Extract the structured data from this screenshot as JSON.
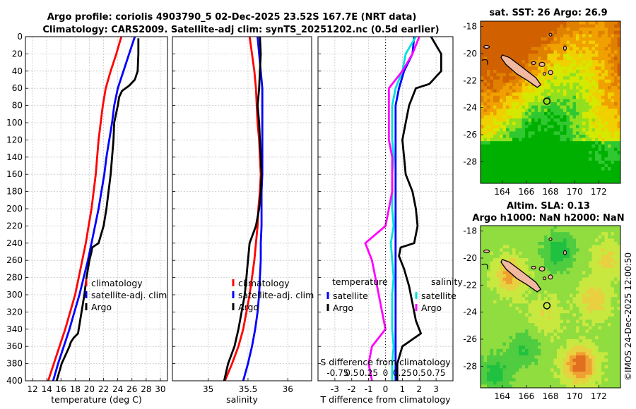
{
  "header": {
    "title_line1": "Argo profile: coriolis 4903790_5 02-Dec-2025 23.52S 167.7E (NRT data)",
    "title_line2": "Climatology: CARS2009. Satellite-adj clim: synTS_20251202.nc (0.5d earlier)"
  },
  "colors": {
    "climatology": "#ff0000",
    "satellite": "#0000ff",
    "argo": "#000000",
    "argo_salinity_diff": "#ff00ff",
    "satellite_salinity_diff": "#00e0e0"
  },
  "depth_axis": {
    "ticks": [
      "0",
      "20",
      "40",
      "60",
      "80",
      "100",
      "120",
      "140",
      "160",
      "180",
      "200",
      "220",
      "240",
      "260",
      "280",
      "300",
      "320",
      "340",
      "360",
      "380",
      "400"
    ]
  },
  "chart_data": [
    {
      "type": "line",
      "id": "temperature",
      "xlabel": "temperature (deg C)",
      "ylabel": "depth",
      "xlim": [
        11,
        31
      ],
      "ylim": [
        400,
        0
      ],
      "xticks": [
        "12",
        "14",
        "16",
        "18",
        "20",
        "22",
        "24",
        "26",
        "28",
        "30"
      ],
      "legend": [
        "climatology",
        "satellite-adj. clim",
        "Argo"
      ],
      "series": [
        {
          "name": "climatology",
          "color_key": "climatology",
          "depth": [
            0,
            20,
            40,
            60,
            80,
            100,
            120,
            140,
            160,
            180,
            200,
            220,
            240,
            260,
            280,
            300,
            320,
            340,
            360,
            380,
            400
          ],
          "values": [
            24.5,
            23.8,
            23.0,
            22.3,
            21.9,
            21.6,
            21.3,
            21.1,
            20.9,
            20.6,
            20.3,
            19.9,
            19.5,
            19.0,
            18.5,
            18.0,
            17.3,
            16.6,
            15.8,
            15.0,
            14.2
          ]
        },
        {
          "name": "satellite-adj. clim",
          "color_key": "satellite",
          "depth": [
            0,
            20,
            40,
            60,
            80,
            100,
            120,
            140,
            160,
            180,
            200,
            220,
            240,
            260,
            280,
            300,
            320,
            340,
            360,
            380,
            400
          ],
          "values": [
            26.4,
            25.6,
            24.8,
            24.0,
            23.5,
            23.2,
            22.8,
            22.4,
            22.1,
            21.7,
            21.3,
            20.8,
            20.3,
            19.8,
            19.2,
            18.6,
            17.9,
            17.2,
            16.4,
            15.6,
            14.9
          ]
        },
        {
          "name": "Argo",
          "color_key": "argo",
          "depth": [
            2,
            20,
            40,
            50,
            57,
            63,
            70,
            80,
            100,
            120,
            140,
            160,
            180,
            200,
            220,
            240,
            245,
            250,
            260,
            280,
            300,
            320,
            345,
            350,
            355,
            360,
            380,
            400
          ],
          "values": [
            26.9,
            26.9,
            26.8,
            26.4,
            25.6,
            24.6,
            24.2,
            24.0,
            23.5,
            23.4,
            23.2,
            23.0,
            22.7,
            22.4,
            22.0,
            21.3,
            20.4,
            20.3,
            20.0,
            19.6,
            19.3,
            18.9,
            18.4,
            17.8,
            17.4,
            17.2,
            16.1,
            15.4
          ]
        }
      ]
    },
    {
      "type": "line",
      "id": "salinity",
      "xlabel": "salinity",
      "ylabel": "depth",
      "xlim": [
        34.55,
        36.3
      ],
      "ylim": [
        400,
        0
      ],
      "xticks": [
        "35",
        "35.5",
        "36"
      ],
      "legend": [
        "climatology",
        "satellite-adj. clim",
        "Argo"
      ],
      "series": [
        {
          "name": "climatology",
          "color_key": "climatology",
          "depth": [
            0,
            20,
            40,
            60,
            80,
            100,
            120,
            140,
            160,
            180,
            200,
            220,
            240,
            260,
            280,
            300,
            320,
            340,
            360,
            380,
            400
          ],
          "values": [
            35.52,
            35.55,
            35.58,
            35.6,
            35.61,
            35.62,
            35.64,
            35.65,
            35.66,
            35.65,
            35.63,
            35.62,
            35.6,
            35.58,
            35.55,
            35.52,
            35.48,
            35.44,
            35.38,
            35.3,
            35.21
          ]
        },
        {
          "name": "satellite-adj. clim",
          "color_key": "satellite",
          "depth": [
            0,
            20,
            40,
            60,
            80,
            100,
            120,
            140,
            160,
            180,
            200,
            220,
            240,
            260,
            280,
            300,
            320,
            340,
            360,
            380,
            400
          ],
          "values": [
            35.62,
            35.64,
            35.66,
            35.68,
            35.68,
            35.68,
            35.68,
            35.68,
            35.68,
            35.67,
            35.67,
            35.67,
            35.66,
            35.66,
            35.65,
            35.64,
            35.62,
            35.59,
            35.55,
            35.5,
            35.44
          ]
        },
        {
          "name": "Argo",
          "color_key": "argo",
          "depth": [
            0,
            20,
            40,
            60,
            80,
            100,
            120,
            140,
            160,
            180,
            200,
            220,
            240,
            260,
            280,
            300,
            320,
            340,
            360,
            380,
            400
          ],
          "values": [
            35.65,
            35.66,
            35.65,
            35.64,
            35.62,
            35.64,
            35.65,
            35.66,
            35.67,
            35.66,
            35.64,
            35.6,
            35.52,
            35.5,
            35.48,
            35.46,
            35.42,
            35.38,
            35.33,
            35.25,
            35.2
          ]
        }
      ]
    },
    {
      "type": "line",
      "id": "differences",
      "xlabel": "T difference from climatology",
      "xlabel_top": "S difference from climatology",
      "ylabel": "depth",
      "xlim": [
        -4,
        4
      ],
      "ylim": [
        400,
        0
      ],
      "xticks": [
        "-3",
        "-2",
        "-1",
        "0",
        "1",
        "2",
        "3"
      ],
      "top_ticks": [
        "-0.75",
        "0.5",
        "0.25",
        "0",
        "0.25",
        "0.5",
        "0.75"
      ],
      "legend_temperature_title": "temperature",
      "legend_salinity_title": "salinity",
      "legend_temperature": [
        "satellite",
        "Argo"
      ],
      "legend_salinity": [
        "satellite",
        "Argo"
      ],
      "series": [
        {
          "name": "T satellite",
          "color_key": "satellite",
          "depth": [
            0,
            20,
            40,
            60,
            80,
            100,
            120,
            140,
            160,
            180,
            200,
            220,
            240,
            260,
            280,
            300,
            320,
            340,
            360,
            380,
            400
          ],
          "values": [
            1.7,
            1.6,
            1.1,
            0.8,
            0.6,
            0.6,
            0.6,
            0.6,
            0.6,
            0.6,
            0.6,
            0.6,
            0.6,
            0.6,
            0.6,
            0.6,
            0.6,
            0.6,
            0.6,
            0.6,
            0.6
          ]
        },
        {
          "name": "T Argo",
          "color_key": "argo",
          "depth": [
            0,
            10,
            20,
            40,
            55,
            60,
            70,
            80,
            100,
            120,
            140,
            160,
            180,
            200,
            220,
            240,
            245,
            255,
            270,
            290,
            310,
            330,
            345,
            360,
            380,
            400
          ],
          "values": [
            2.7,
            3.0,
            3.3,
            3.3,
            2.6,
            1.8,
            1.6,
            1.4,
            1.2,
            1.0,
            1.1,
            1.2,
            1.6,
            1.8,
            1.9,
            1.7,
            0.9,
            0.8,
            1.1,
            1.4,
            1.6,
            1.8,
            2.1,
            1.0,
            0.7,
            0.7
          ]
        },
        {
          "name": "S satellite",
          "color_key": "satellite_salinity_diff",
          "depth": [
            0,
            20,
            40,
            60,
            80,
            100,
            120,
            140,
            160,
            180,
            200,
            220,
            240,
            260,
            280,
            300,
            320,
            340,
            360,
            380,
            400
          ],
          "values": [
            0.45,
            0.3,
            0.25,
            0.15,
            0.1,
            0.1,
            0.1,
            0.12,
            0.1,
            0.1,
            0.1,
            0.12,
            0.08,
            0.1,
            0.12,
            0.1,
            0.1,
            0.1,
            0.12,
            0.1,
            0.1
          ]
        },
        {
          "name": "S Argo",
          "color_key": "argo_salinity_diff",
          "depth": [
            0,
            20,
            40,
            60,
            80,
            100,
            120,
            140,
            160,
            180,
            200,
            220,
            240,
            260,
            280,
            300,
            320,
            340,
            360,
            380,
            400
          ],
          "values": [
            0.5,
            0.4,
            0.25,
            0.05,
            0.05,
            0.05,
            0.05,
            0.1,
            0.1,
            0.1,
            0.05,
            0.0,
            -0.3,
            -0.2,
            -0.15,
            -0.1,
            -0.05,
            0.0,
            -0.2,
            -0.25,
            -0.2
          ]
        }
      ]
    },
    {
      "type": "heatmap",
      "id": "sst_map",
      "title": "sat. SST: 26 Argo: 26.9",
      "xticks": [
        "164",
        "166",
        "168",
        "170",
        "172"
      ],
      "yticks": [
        "-18",
        "-20",
        "-22",
        "-24",
        "-26",
        "-28"
      ],
      "xlim": [
        162.2,
        173.8
      ],
      "ylim": [
        -29.6,
        -17.6
      ],
      "argo_position": [
        167.7,
        -23.52
      ],
      "color_scale": [
        "#00b000",
        "#30c830",
        "#90e020",
        "#d4e800",
        "#f0d000",
        "#f0a000",
        "#e08000",
        "#d06000"
      ],
      "value_range": [
        22.5,
        28.5
      ]
    },
    {
      "type": "heatmap",
      "id": "sla_map",
      "title": "Altim. SLA: 0.13",
      "subtitle": "Argo h1000: NaN h2000: NaN",
      "xticks": [
        "164",
        "166",
        "168",
        "170",
        "172"
      ],
      "yticks": [
        "-18",
        "-20",
        "-22",
        "-24",
        "-26",
        "-28"
      ],
      "xlim": [
        162.2,
        173.8
      ],
      "ylim": [
        -29.6,
        -17.6
      ],
      "argo_position": [
        167.7,
        -23.52
      ],
      "color_scale": [
        "#20c040",
        "#50cc40",
        "#90dd40",
        "#c8e840",
        "#e8d040",
        "#f0a030",
        "#e07020"
      ],
      "value_range": [
        0.0,
        0.3
      ]
    }
  ],
  "footer": {
    "watermark": "©IMOS 24-Dec-2025 12:00:50"
  }
}
